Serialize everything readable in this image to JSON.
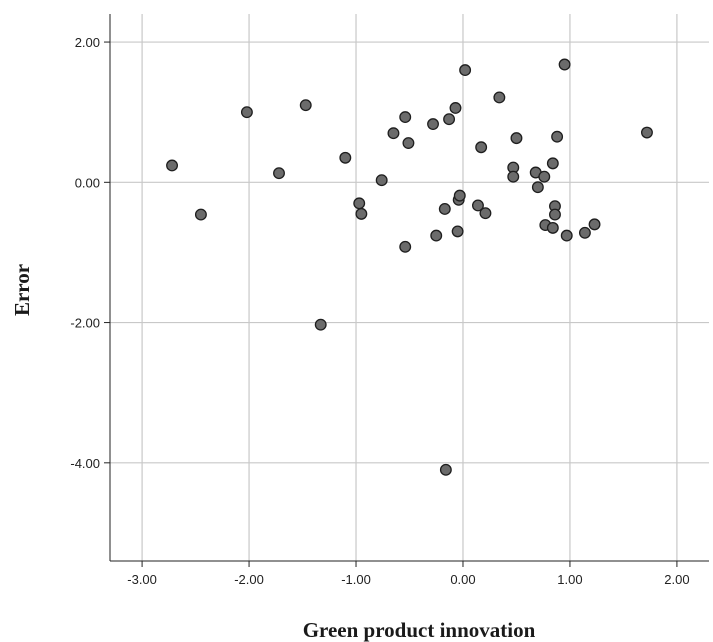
{
  "chart_data": {
    "type": "scatter",
    "title": "",
    "xlabel": "Green product innovation",
    "ylabel": "Error",
    "xlim": [
      -3.3,
      2.3
    ],
    "ylim": [
      -5.4,
      2.4
    ],
    "x_ticks": [
      -3,
      -2,
      -1,
      0,
      1,
      2
    ],
    "x_tick_labels": [
      "-3.00",
      "-2.00",
      "-1.00",
      "0.00",
      "1.00",
      "2.00"
    ],
    "y_ticks": [
      2,
      0,
      -2,
      -4
    ],
    "y_tick_labels": [
      "2.00",
      "0.00",
      "-2.00",
      "-4.00"
    ],
    "grid": true,
    "legend": "none",
    "colors": {
      "point_fill": "#6b6b6b",
      "point_edge": "#1e1e1e",
      "grid": "#c8c8c8",
      "axis": "#222222"
    },
    "points": [
      {
        "x": -2.72,
        "y": 0.24
      },
      {
        "x": -2.45,
        "y": -0.46
      },
      {
        "x": -2.02,
        "y": 1.0
      },
      {
        "x": -1.72,
        "y": 0.13
      },
      {
        "x": -1.47,
        "y": 1.1
      },
      {
        "x": -1.33,
        "y": -2.03
      },
      {
        "x": -1.1,
        "y": 0.35
      },
      {
        "x": -0.97,
        "y": -0.3
      },
      {
        "x": -0.95,
        "y": -0.45
      },
      {
        "x": -0.76,
        "y": 0.03
      },
      {
        "x": -0.65,
        "y": 0.7
      },
      {
        "x": -0.54,
        "y": 0.93
      },
      {
        "x": -0.54,
        "y": -0.92
      },
      {
        "x": -0.51,
        "y": 0.56
      },
      {
        "x": -0.28,
        "y": 0.83
      },
      {
        "x": -0.25,
        "y": -0.76
      },
      {
        "x": -0.17,
        "y": -0.38
      },
      {
        "x": -0.16,
        "y": -4.1
      },
      {
        "x": -0.13,
        "y": 0.9
      },
      {
        "x": -0.07,
        "y": 1.06
      },
      {
        "x": -0.05,
        "y": -0.7
      },
      {
        "x": -0.04,
        "y": -0.25
      },
      {
        "x": -0.03,
        "y": -0.19
      },
      {
        "x": 0.02,
        "y": 1.6
      },
      {
        "x": 0.14,
        "y": -0.33
      },
      {
        "x": 0.17,
        "y": 0.5
      },
      {
        "x": 0.21,
        "y": -0.44
      },
      {
        "x": 0.34,
        "y": 1.21
      },
      {
        "x": 0.47,
        "y": 0.21
      },
      {
        "x": 0.47,
        "y": 0.08
      },
      {
        "x": 0.5,
        "y": 0.63
      },
      {
        "x": 0.68,
        "y": 0.14
      },
      {
        "x": 0.7,
        "y": -0.07
      },
      {
        "x": 0.76,
        "y": 0.08
      },
      {
        "x": 0.77,
        "y": -0.61
      },
      {
        "x": 0.84,
        "y": 0.27
      },
      {
        "x": 0.84,
        "y": -0.65
      },
      {
        "x": 0.86,
        "y": -0.34
      },
      {
        "x": 0.86,
        "y": -0.46
      },
      {
        "x": 0.88,
        "y": 0.65
      },
      {
        "x": 0.95,
        "y": 1.68
      },
      {
        "x": 0.97,
        "y": -0.76
      },
      {
        "x": 1.14,
        "y": -0.72
      },
      {
        "x": 1.23,
        "y": -0.6
      },
      {
        "x": 1.72,
        "y": 0.71
      }
    ]
  }
}
